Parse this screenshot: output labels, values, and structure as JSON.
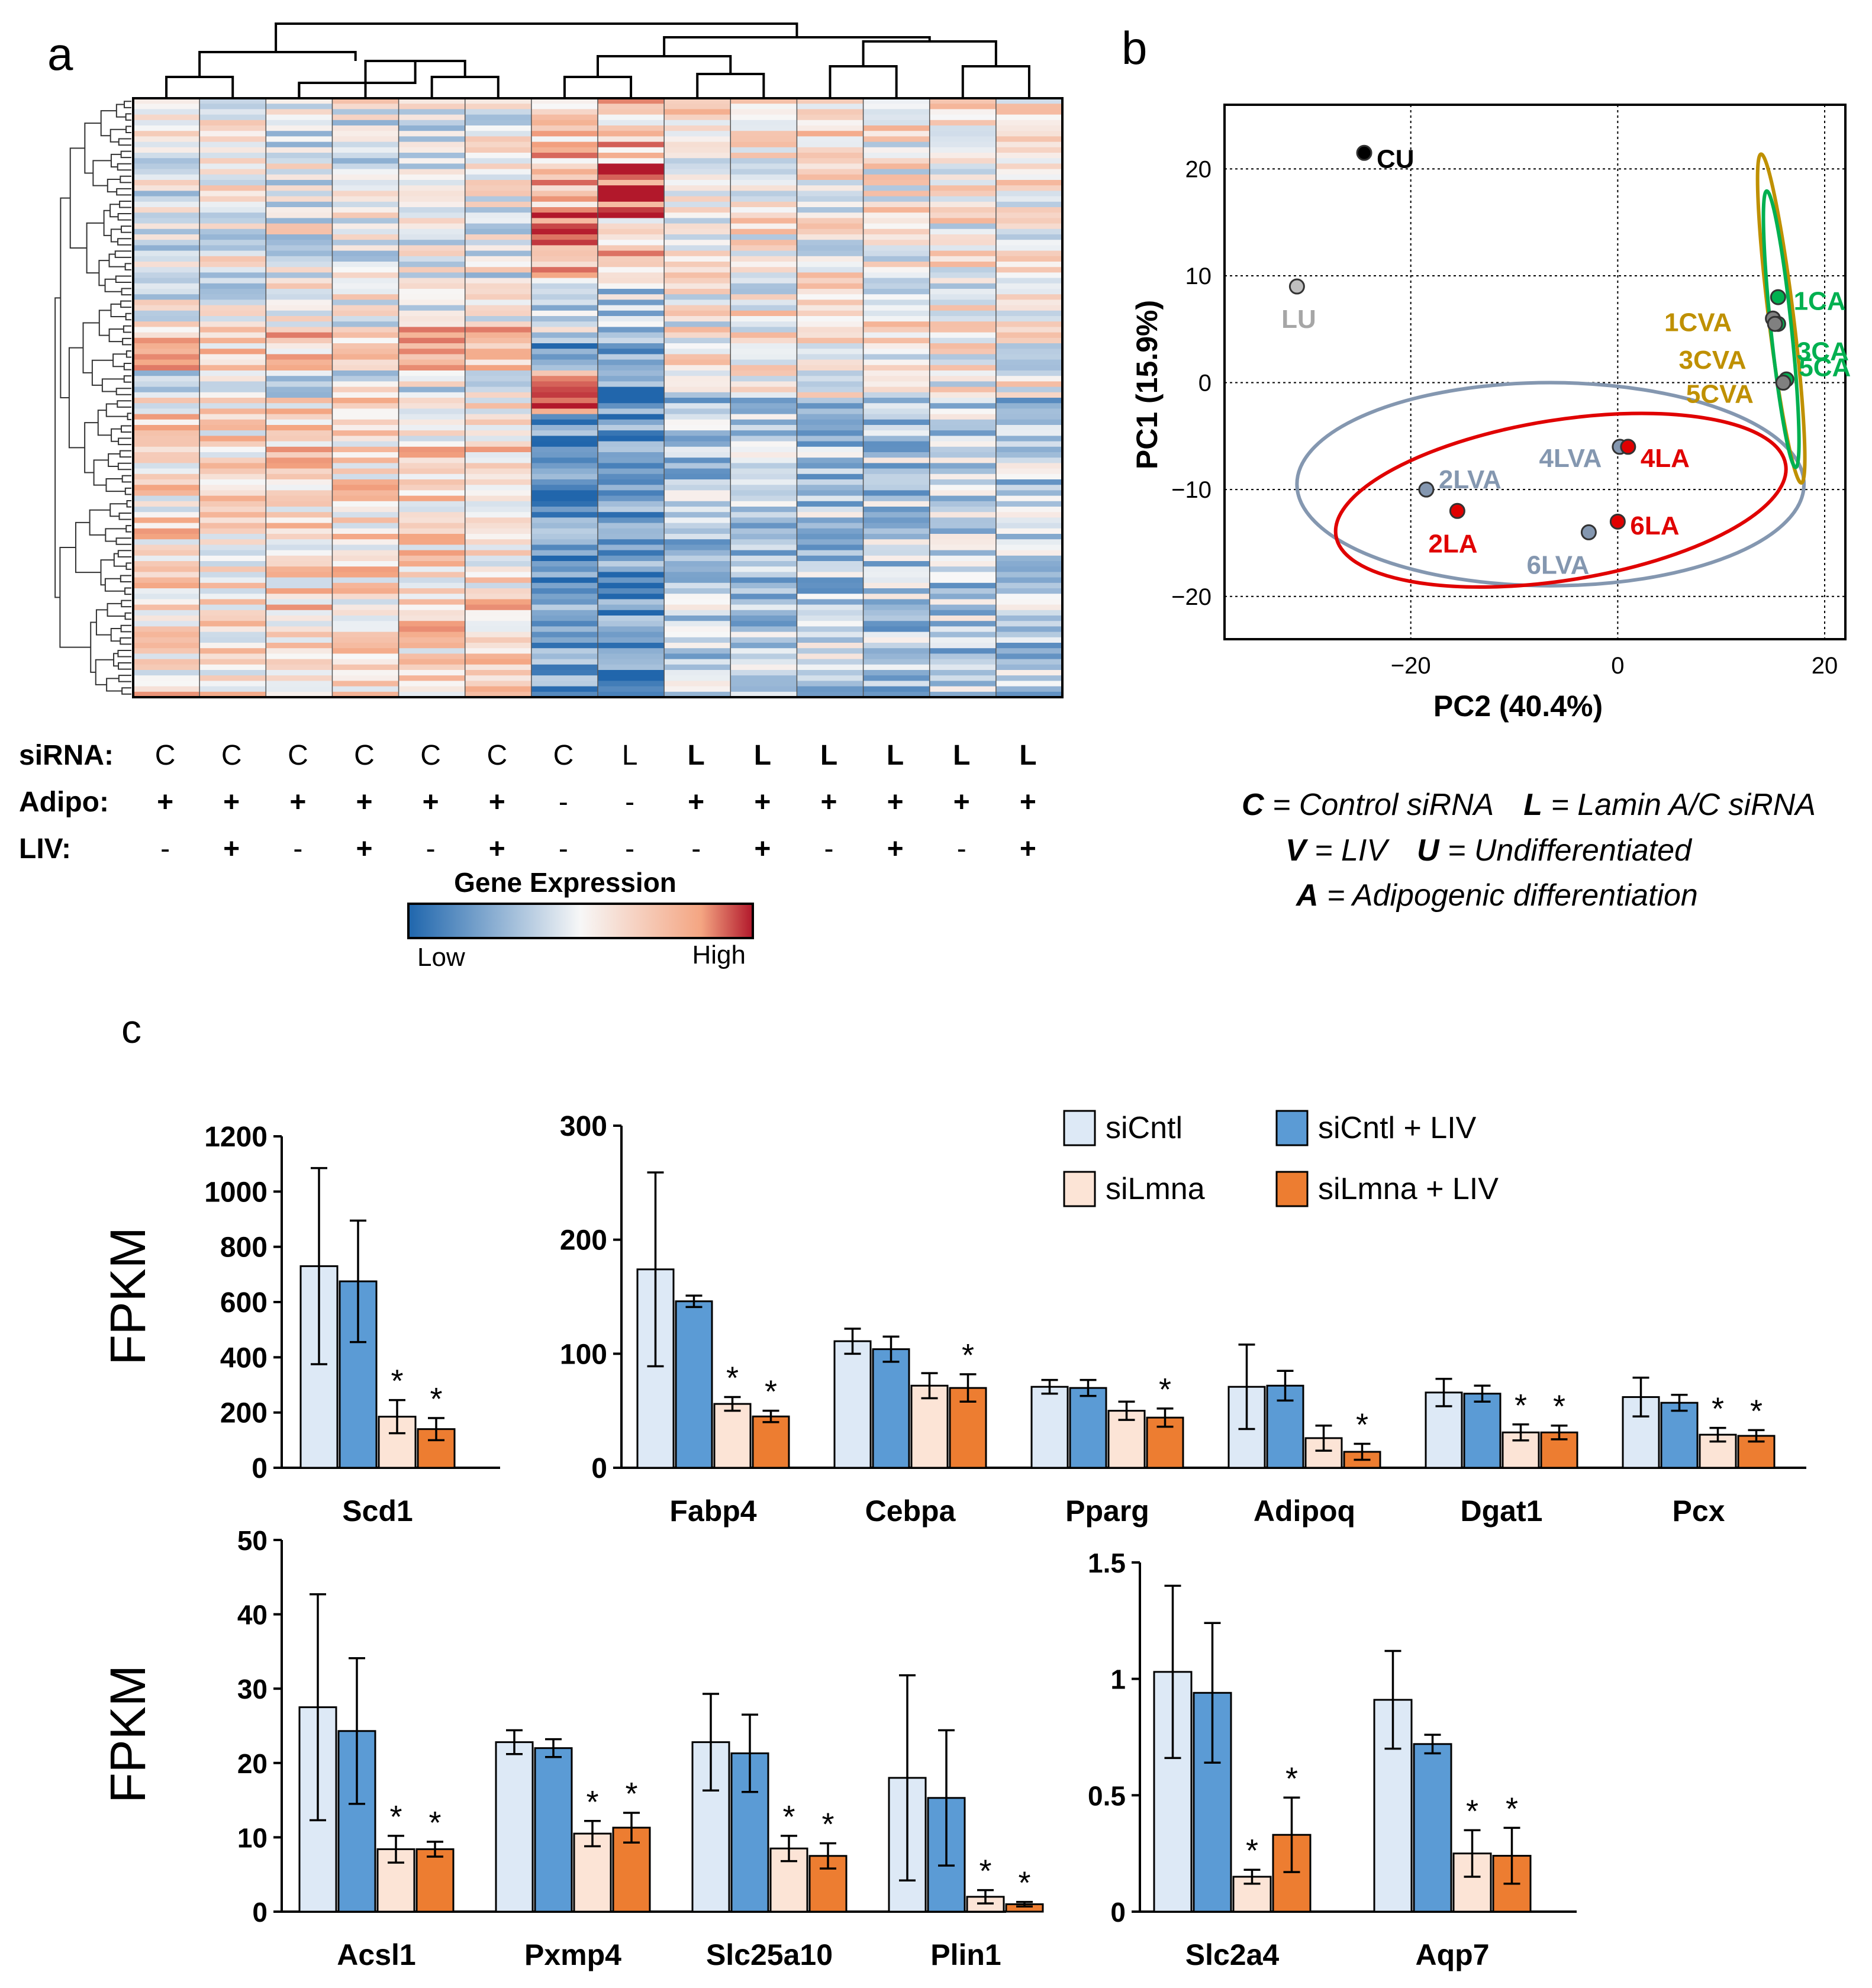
{
  "panel_labels": {
    "a": "a",
    "b": "b",
    "c": "c"
  },
  "colors": {
    "siCntl": "#dde9f6",
    "siCntl_LIV": "#5b9bd5",
    "siLmna": "#fce4d6",
    "siLmna_LIV": "#ed7d31",
    "heat_low": "#2166ac",
    "heat_mid": "#f7f7f7",
    "heat_high": "#b2182b",
    "pca_black": "#000000",
    "pca_grey": "#a6a6a6",
    "pca_slate": "#8497b0",
    "pca_red": "#e00000",
    "pca_gold": "#bf9000",
    "pca_green": "#00b050"
  },
  "heatmap": {
    "column_count": 14,
    "row_labels": [
      "siRNA:",
      "Adipo:",
      "LIV:"
    ],
    "sirna": [
      "C",
      "C",
      "C",
      "C",
      "C",
      "C",
      "C",
      "L",
      "L",
      "L",
      "L",
      "L",
      "L",
      "L"
    ],
    "adipo": [
      "+",
      "+",
      "+",
      "+",
      "+",
      "+",
      "-",
      "-",
      "+",
      "+",
      "+",
      "+",
      "+",
      "+"
    ],
    "liv": [
      "-",
      "+",
      "-",
      "+",
      "-",
      "+",
      "-",
      "-",
      "-",
      "+",
      "-",
      "+",
      "-",
      "+"
    ],
    "legend": {
      "title": "Gene Expression",
      "low": "Low",
      "high": "High"
    }
  },
  "pca": {
    "xlabel": "PC2 (40.4%)",
    "ylabel": "PC1 (15.9%)",
    "xlim": [
      -38,
      22
    ],
    "ylim": [
      -24,
      26
    ],
    "xticks": [
      -20,
      0,
      20
    ],
    "yticks": [
      20,
      10,
      0,
      -10,
      -20
    ],
    "points": [
      {
        "label": "CU",
        "x": -24.5,
        "y": 21.5,
        "color": "#000000",
        "label_color": "#000000",
        "dx": 1.2,
        "dy": -0.5
      },
      {
        "label": "LU",
        "x": -31,
        "y": 9,
        "color": "#bfbfbf",
        "label_color": "#a6a6a6",
        "dx": -1.5,
        "dy": -3
      },
      {
        "label": "1CA",
        "x": 15.5,
        "y": 8,
        "color": "#00b050",
        "label_color": "#00b050",
        "dx": 1.5,
        "dy": -0.3
      },
      {
        "label": "1CVA",
        "x": 15,
        "y": 6,
        "color": "#808080",
        "label_color": "#bf9000",
        "dx": -10.5,
        "dy": -0.3
      },
      {
        "label": "3CA",
        "x": 15.5,
        "y": 5.5,
        "color": "#00b050",
        "label_color": "#00b050",
        "dx": 1.8,
        "dy": -2.5
      },
      {
        "label": "3CVA",
        "x": 15.2,
        "y": 5.5,
        "color": "#808080",
        "label_color": "#bf9000",
        "dx": -9.3,
        "dy": -3.3
      },
      {
        "label": "5CA",
        "x": 16.3,
        "y": 0.3,
        "color": "#00b050",
        "label_color": "#00b050",
        "dx": 1.2,
        "dy": 1.2
      },
      {
        "label": "5CVA",
        "x": 16,
        "y": 0,
        "color": "#808080",
        "label_color": "#bf9000",
        "dx": -9.4,
        "dy": -1
      },
      {
        "label": "4LVA",
        "x": 0.2,
        "y": -6,
        "color": "#8497b0",
        "label_color": "#8497b0",
        "dx": -7.8,
        "dy": -1
      },
      {
        "label": "4LA",
        "x": 1,
        "y": -6,
        "color": "#e00000",
        "label_color": "#e00000",
        "dx": 1.2,
        "dy": -1
      },
      {
        "label": "2LVA",
        "x": -18.5,
        "y": -10,
        "color": "#8497b0",
        "label_color": "#8497b0",
        "dx": 1.2,
        "dy": 1
      },
      {
        "label": "2LA",
        "x": -15.5,
        "y": -12,
        "color": "#e00000",
        "label_color": "#e00000",
        "dx": -2.8,
        "dy": -3
      },
      {
        "label": "6LVA",
        "x": -2.8,
        "y": -14,
        "color": "#8497b0",
        "label_color": "#8497b0",
        "dx": -6,
        "dy": -3
      },
      {
        "label": "6LA",
        "x": 0,
        "y": -13,
        "color": "#e00000",
        "label_color": "#e00000",
        "dx": 1.2,
        "dy": -0.3
      }
    ],
    "ellipses": [
      {
        "group": "LVA",
        "cx": -6.5,
        "cy": -9.5,
        "rx": 24.5,
        "ry": 9.5,
        "rot": 0,
        "color": "#8497b0"
      },
      {
        "group": "LA",
        "cx": -5.5,
        "cy": -11,
        "rx": 22,
        "ry": 7.5,
        "rot": -9,
        "color": "#e00000"
      },
      {
        "group": "CVA",
        "cx": 15.8,
        "cy": 6,
        "rx": 1.2,
        "ry": 15.5,
        "rot": -7,
        "color": "#bf9000"
      },
      {
        "group": "CA",
        "cx": 15.8,
        "cy": 5,
        "rx": 1.0,
        "ry": 13,
        "rot": -6,
        "color": "#00b050"
      }
    ],
    "legend_lines": [
      [
        {
          "b": "C",
          "t": " = Control siRNA"
        },
        {
          "b": "L",
          "t": " = Lamin A/C siRNA"
        }
      ],
      [
        {
          "b": "V",
          "t": " = LIV"
        },
        {
          "b": "U",
          "t": " = Undifferentiated"
        }
      ],
      [
        {
          "b": "A",
          "t": " = Adipogenic differentiation"
        }
      ]
    ]
  },
  "chart_data": [
    {
      "type": "bar",
      "id": "c1",
      "ylabel": "FPKM",
      "ylim": [
        0,
        1200
      ],
      "yticks": [
        "0",
        "200",
        "400",
        "600",
        "800",
        "1000",
        "1200"
      ],
      "categories": [
        "Scd1"
      ],
      "series": [
        {
          "name": "siCntl",
          "values": [
            730
          ],
          "errors": [
            355
          ]
        },
        {
          "name": "siCntl + LIV",
          "values": [
            675
          ],
          "errors": [
            220
          ]
        },
        {
          "name": "siLmna",
          "values": [
            185
          ],
          "errors": [
            60
          ]
        },
        {
          "name": "siLmna + LIV",
          "values": [
            140
          ],
          "errors": [
            40
          ]
        }
      ],
      "significance": [
        [
          "",
          "",
          "*",
          "*"
        ]
      ]
    },
    {
      "type": "bar",
      "id": "c2",
      "ylabel": "",
      "ylim": [
        0,
        300
      ],
      "yticks": [
        "0",
        "100",
        "200",
        "300"
      ],
      "categories": [
        "Fabp4",
        "Cebpa",
        "Pparg",
        "Adipoq",
        "Dgat1",
        "Pcx"
      ],
      "series": [
        {
          "name": "siCntl",
          "values": [
            174,
            111,
            71,
            71,
            66,
            62
          ],
          "errors": [
            85,
            11,
            6,
            37,
            12,
            17
          ]
        },
        {
          "name": "siCntl + LIV",
          "values": [
            146,
            104,
            70,
            72,
            65,
            57
          ],
          "errors": [
            5,
            11,
            7,
            13,
            7,
            7
          ]
        },
        {
          "name": "siLmna",
          "values": [
            56,
            72,
            50,
            26,
            31,
            29
          ],
          "errors": [
            6,
            11,
            8,
            11,
            7,
            6
          ]
        },
        {
          "name": "siLmna + LIV",
          "values": [
            45,
            70,
            44,
            14,
            31,
            28
          ],
          "errors": [
            5,
            12,
            8,
            7,
            6,
            5
          ]
        }
      ],
      "significance": [
        [
          "",
          "",
          "*",
          "*"
        ],
        [
          "",
          "",
          "",
          "*"
        ],
        [
          "",
          "",
          "",
          "*"
        ],
        [
          "",
          "",
          "",
          "*"
        ],
        [
          "",
          "",
          "*",
          "*"
        ],
        [
          "",
          "",
          "*",
          "*"
        ]
      ],
      "legend": [
        "siCntl",
        "siCntl + LIV",
        "siLmna",
        "siLmna + LIV"
      ]
    },
    {
      "type": "bar",
      "id": "c3",
      "ylabel": "FPKM",
      "ylim": [
        0,
        50
      ],
      "yticks": [
        "0",
        "10",
        "20",
        "30",
        "40",
        "50"
      ],
      "categories": [
        "Acsl1",
        "Pxmp4",
        "Slc25a10",
        "Plin1"
      ],
      "series": [
        {
          "name": "siCntl",
          "values": [
            27.5,
            22.8,
            22.8,
            18
          ],
          "errors": [
            15.2,
            1.6,
            6.5,
            13.8
          ]
        },
        {
          "name": "siCntl + LIV",
          "values": [
            24.3,
            22,
            21.3,
            15.3
          ],
          "errors": [
            9.8,
            1.2,
            5.2,
            9.1
          ]
        },
        {
          "name": "siLmna",
          "values": [
            8.4,
            10.5,
            8.5,
            2
          ],
          "errors": [
            1.8,
            1.7,
            1.7,
            0.9
          ]
        },
        {
          "name": "siLmna + LIV",
          "values": [
            8.4,
            11.3,
            7.5,
            1
          ],
          "errors": [
            1,
            2,
            1.7,
            0.3
          ]
        }
      ],
      "significance": [
        [
          "",
          "",
          "*",
          "*"
        ],
        [
          "",
          "",
          "*",
          "*"
        ],
        [
          "",
          "",
          "*",
          "*"
        ],
        [
          "",
          "",
          "*",
          "*"
        ]
      ]
    },
    {
      "type": "bar",
      "id": "c4",
      "ylabel": "",
      "ylim": [
        0,
        1.5
      ],
      "yticks": [
        "0",
        "0.5",
        "1",
        "1.5"
      ],
      "categories": [
        "Slc2a4",
        "Aqp7"
      ],
      "series": [
        {
          "name": "siCntl",
          "values": [
            1.03,
            0.91
          ],
          "errors": [
            0.37,
            0.21
          ]
        },
        {
          "name": "siCntl + LIV",
          "values": [
            0.94,
            0.72
          ],
          "errors": [
            0.3,
            0.04
          ]
        },
        {
          "name": "siLmna",
          "values": [
            0.15,
            0.25
          ],
          "errors": [
            0.03,
            0.1
          ]
        },
        {
          "name": "siLmna + LIV",
          "values": [
            0.33,
            0.24
          ],
          "errors": [
            0.16,
            0.12
          ]
        }
      ],
      "significance": [
        [
          "",
          "",
          "*",
          "*"
        ],
        [
          "",
          "",
          "*",
          "*"
        ]
      ]
    }
  ]
}
